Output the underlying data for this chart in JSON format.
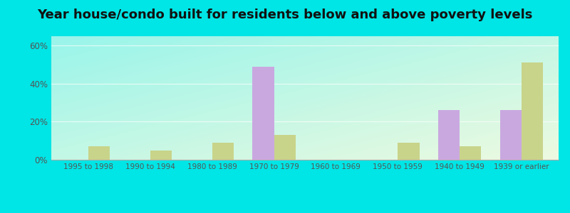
{
  "title": "Year house/condo built for residents below and above poverty levels",
  "categories": [
    "1995 to 1998",
    "1990 to 1994",
    "1980 to 1989",
    "1970 to 1979",
    "1960 to 1969",
    "1950 to 1959",
    "1940 to 1949",
    "1939 or earlier"
  ],
  "below_poverty": [
    0,
    0,
    0,
    49,
    0,
    0,
    26,
    26
  ],
  "above_poverty": [
    7,
    5,
    9,
    13,
    0,
    9,
    7,
    51
  ],
  "below_color": "#c9a8e0",
  "above_color": "#c8d48a",
  "bg_topleft": "#a0f0ec",
  "bg_bottomright": "#dff5d8",
  "outer_bg": "#00e5e5",
  "ylim": [
    0,
    65
  ],
  "yticks": [
    0,
    20,
    40,
    60
  ],
  "ytick_labels": [
    "0%",
    "20%",
    "40%",
    "60%"
  ],
  "title_fontsize": 13,
  "bar_width": 0.35
}
